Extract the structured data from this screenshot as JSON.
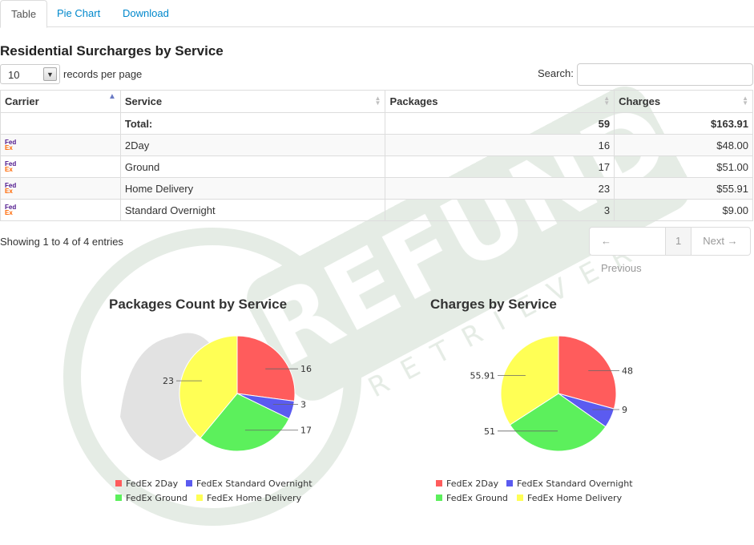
{
  "tabs": [
    {
      "label": "Table",
      "active": true
    },
    {
      "label": "Pie Chart",
      "active": false
    },
    {
      "label": "Download",
      "active": false
    }
  ],
  "section_title": "Residential Surcharges by Service",
  "controls": {
    "records_per_page_value": "10",
    "records_per_page_label": "records per page",
    "search_label": "Search:",
    "search_value": ""
  },
  "table": {
    "headers": [
      "Carrier",
      "Service",
      "Packages",
      "Charges"
    ],
    "total": {
      "label": "Total:",
      "packages": "59",
      "charges": "$163.91"
    },
    "rows": [
      {
        "carrier": "FedEx",
        "service": "2Day",
        "packages": "16",
        "charges": "$48.00"
      },
      {
        "carrier": "FedEx",
        "service": "Ground",
        "packages": "17",
        "charges": "$51.00"
      },
      {
        "carrier": "FedEx",
        "service": "Home Delivery",
        "packages": "23",
        "charges": "$55.91"
      },
      {
        "carrier": "FedEx",
        "service": "Standard Overnight",
        "packages": "3",
        "charges": "$9.00"
      }
    ],
    "info": "Showing 1 to 4 of 4 entries",
    "pager": {
      "previous": "← Previous",
      "current": "1",
      "next": "Next →"
    }
  },
  "watermark": {
    "text": "REFUND",
    "subtext": "RETRIEVER"
  },
  "chart_data": [
    {
      "type": "pie",
      "title": "Packages Count by Service",
      "slices": [
        {
          "label": "FedEx 2Day",
          "value": 16,
          "display": "16",
          "color": "#ff5c5c"
        },
        {
          "label": "FedEx Standard Overnight",
          "value": 3,
          "display": "3",
          "color": "#5b5bf0"
        },
        {
          "label": "FedEx Ground",
          "value": 17,
          "display": "17",
          "color": "#5cf05c"
        },
        {
          "label": "FedEx Home Delivery",
          "value": 23,
          "display": "23",
          "color": "#ffff55"
        }
      ],
      "legend_position": "bottom"
    },
    {
      "type": "pie",
      "title": "Charges by Service",
      "slices": [
        {
          "label": "FedEx 2Day",
          "value": 48,
          "display": "48",
          "color": "#ff5c5c"
        },
        {
          "label": "FedEx Standard Overnight",
          "value": 9,
          "display": "9",
          "color": "#5b5bf0"
        },
        {
          "label": "FedEx Ground",
          "value": 51,
          "display": "51",
          "color": "#5cf05c"
        },
        {
          "label": "FedEx Home Delivery",
          "value": 55.91,
          "display": "55.91",
          "color": "#ffff55"
        }
      ],
      "legend_position": "bottom"
    }
  ]
}
